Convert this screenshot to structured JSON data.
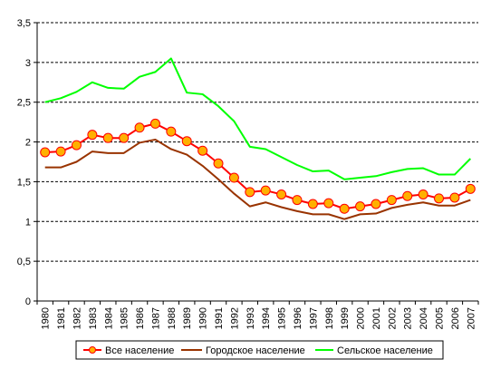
{
  "chart_data": {
    "type": "line",
    "title": "",
    "xlabel": "",
    "ylabel": "",
    "ylim": [
      0,
      3.5
    ],
    "yticks": [
      "0",
      "0,5",
      "1",
      "1,5",
      "2",
      "2,5",
      "3",
      "3,5"
    ],
    "grid": "horizontal dashed",
    "legend_position": "bottom",
    "categories": [
      "1980",
      "1981",
      "1982",
      "1983",
      "1984",
      "1985",
      "1986",
      "1987",
      "1988",
      "1989",
      "1990",
      "1991",
      "1992",
      "1993",
      "1994",
      "1995",
      "1996",
      "1997",
      "1998",
      "1999",
      "2000",
      "2001",
      "2002",
      "2003",
      "2004",
      "2005",
      "2006",
      "2007"
    ],
    "series": [
      {
        "name": "Все население",
        "color": "#ff0000",
        "marker_color": "#ffb000",
        "markers": true,
        "values": [
          1.87,
          1.88,
          1.96,
          2.09,
          2.05,
          2.05,
          2.18,
          2.23,
          2.13,
          2.01,
          1.89,
          1.73,
          1.55,
          1.37,
          1.39,
          1.34,
          1.27,
          1.22,
          1.23,
          1.16,
          1.19,
          1.22,
          1.27,
          1.32,
          1.34,
          1.29,
          1.3,
          1.41
        ]
      },
      {
        "name": "Городское население",
        "color": "#993300",
        "markers": false,
        "values": [
          1.68,
          1.68,
          1.75,
          1.88,
          1.86,
          1.86,
          1.99,
          2.03,
          1.91,
          1.84,
          1.7,
          1.53,
          1.35,
          1.19,
          1.24,
          1.18,
          1.13,
          1.09,
          1.09,
          1.03,
          1.09,
          1.1,
          1.17,
          1.21,
          1.24,
          1.2,
          1.2,
          1.27
        ]
      },
      {
        "name": "Сельское население",
        "color": "#00ff00",
        "markers": false,
        "values": [
          2.5,
          2.55,
          2.63,
          2.75,
          2.68,
          2.67,
          2.82,
          2.88,
          3.05,
          2.62,
          2.6,
          2.45,
          2.26,
          1.94,
          1.91,
          1.81,
          1.71,
          1.63,
          1.64,
          1.53,
          1.55,
          1.57,
          1.62,
          1.66,
          1.67,
          1.59,
          1.59,
          1.79
        ]
      }
    ]
  }
}
